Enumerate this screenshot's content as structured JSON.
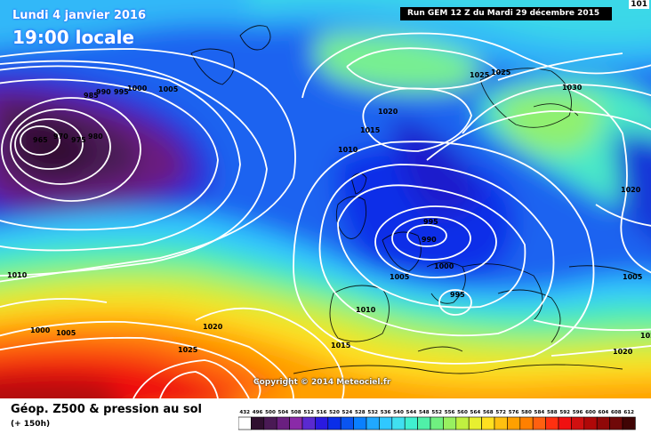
{
  "header": {
    "date_label": "Lundi 4 janvier 2016",
    "time_label": "19:00 locale",
    "run_label": "Run GEM 12 Z du Mardi 29 décembre 2015",
    "corner_label": "101"
  },
  "copyright": "Copyright © 2014 Meteociel.fr",
  "footer": {
    "title": "Géop. Z500 & pression au sol",
    "subtitle": "(+ 150h)"
  },
  "legend": {
    "values": [
      "432",
      "496",
      "500",
      "504",
      "508",
      "512",
      "516",
      "520",
      "524",
      "528",
      "532",
      "536",
      "540",
      "544",
      "548",
      "552",
      "556",
      "560",
      "564",
      "568",
      "572",
      "576",
      "580",
      "584",
      "588",
      "592",
      "596",
      "600",
      "604",
      "608",
      "612"
    ],
    "colors": [
      "#ffffff",
      "#301030",
      "#4a1a55",
      "#6a1f80",
      "#8a2aa8",
      "#5a2ad0",
      "#2a1ae0",
      "#0a2ee8",
      "#0a55f0",
      "#0a80ff",
      "#20a8ff",
      "#30c8ff",
      "#40e0f0",
      "#40f0d0",
      "#50f0a8",
      "#70f080",
      "#98f060",
      "#c0f040",
      "#e8f030",
      "#ffe020",
      "#ffc010",
      "#ffa000",
      "#ff8000",
      "#ff6010",
      "#ff3010",
      "#f01010",
      "#d01010",
      "#b00808",
      "#900808",
      "#700808",
      "#400404"
    ]
  },
  "isobars": [
    {
      "text": "965"
    },
    {
      "text": "970"
    },
    {
      "text": "975"
    },
    {
      "text": "980"
    },
    {
      "text": "985"
    },
    {
      "text": "990"
    },
    {
      "text": "995"
    },
    {
      "text": "1000"
    },
    {
      "text": "1005"
    },
    {
      "text": "1010"
    },
    {
      "text": "1000"
    },
    {
      "text": "1005"
    },
    {
      "text": "1020"
    },
    {
      "text": "1025"
    },
    {
      "text": "1010"
    },
    {
      "text": "1015"
    },
    {
      "text": "1020"
    },
    {
      "text": "1025"
    },
    {
      "text": "1025"
    },
    {
      "text": "1030"
    },
    {
      "text": "995"
    },
    {
      "text": "990"
    },
    {
      "text": "1000"
    },
    {
      "text": "1005"
    },
    {
      "text": "995"
    },
    {
      "text": "1010"
    },
    {
      "text": "1015"
    },
    {
      "text": "1020"
    },
    {
      "text": "1005"
    },
    {
      "text": "1020"
    },
    {
      "text": "1020"
    }
  ]
}
